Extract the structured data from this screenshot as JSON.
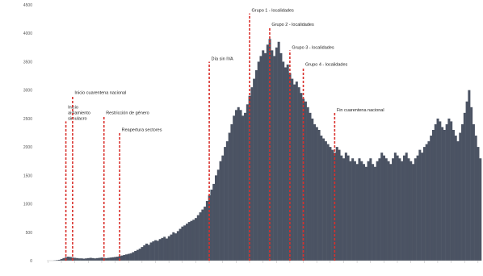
{
  "chart_data": {
    "type": "bar",
    "title": "",
    "xlabel": "",
    "ylabel": "",
    "ylim": [
      0,
      4500
    ],
    "y_ticks": [
      "0",
      "500",
      "1000",
      "1500",
      "2000",
      "2500",
      "3000",
      "3500",
      "4000",
      "4500"
    ],
    "grid": false,
    "bar_color": "#4b5363",
    "marker_color": "#d9302c",
    "series": [
      {
        "values": [
          0,
          0,
          0,
          5,
          10,
          15,
          30,
          45,
          60,
          70,
          65,
          55,
          50,
          45,
          40,
          40,
          35,
          40,
          45,
          50,
          45,
          40,
          45,
          50,
          55,
          50,
          45,
          50,
          55,
          60,
          65,
          70,
          80,
          90,
          100,
          110,
          120,
          130,
          150,
          170,
          190,
          210,
          240,
          270,
          300,
          280,
          320,
          340,
          360,
          350,
          380,
          400,
          420,
          390,
          430,
          460,
          500,
          480,
          520,
          560,
          600,
          620,
          650,
          680,
          700,
          720,
          750,
          800,
          850,
          900,
          950,
          1050,
          1150,
          1250,
          1350,
          1500,
          1600,
          1750,
          1850,
          2000,
          2100,
          2250,
          2400,
          2550,
          2650,
          2700,
          2650,
          2550,
          2600,
          2750,
          2900,
          3050,
          3200,
          3350,
          3500,
          3600,
          3700,
          3650,
          3800,
          3900,
          3700,
          3600,
          3750,
          3850,
          3650,
          3500,
          3400,
          3450,
          3300,
          3200,
          3100,
          3150,
          3050,
          2950,
          2850,
          2800,
          2700,
          2600,
          2500,
          2400,
          2350,
          2300,
          2200,
          2150,
          2100,
          2050,
          2000,
          1950,
          1900,
          2000,
          1950,
          1850,
          1800,
          1900,
          1850,
          1750,
          1800,
          1750,
          1700,
          1800,
          1750,
          1700,
          1650,
          1750,
          1800,
          1700,
          1650,
          1750,
          1800,
          1900,
          1850,
          1800,
          1750,
          1700,
          1800,
          1900,
          1850,
          1800,
          1750,
          1850,
          1900,
          1800,
          1750,
          1700,
          1800,
          1850,
          1950,
          1900,
          2000,
          2050,
          2100,
          2200,
          2300,
          2400,
          2500,
          2450,
          2350,
          2300,
          2400,
          2500,
          2450,
          2300,
          2200,
          2100,
          2250,
          2400,
          2600,
          2800,
          3000,
          2700,
          2400,
          2200,
          2000,
          1800
        ]
      }
    ],
    "annotations": [
      {
        "label_lines": [
          "Inicio",
          "aislamiento",
          "simulacro"
        ],
        "bar_index": 8,
        "height": 2450
      },
      {
        "label_lines": [
          "Inicio cuarentena nacional"
        ],
        "bar_index": 11,
        "height": 2900
      },
      {
        "label_lines": [
          "Restricción de género"
        ],
        "bar_index": 25,
        "height": 2550
      },
      {
        "label_lines": [
          "Reapertura sectores"
        ],
        "bar_index": 32,
        "height": 2250
      },
      {
        "label_lines": [
          "Día sin IVA"
        ],
        "bar_index": 72,
        "height": 3500
      },
      {
        "label_lines": [
          "Grupo 1 - localidades"
        ],
        "bar_index": 90,
        "height": 4350
      },
      {
        "label_lines": [
          "Grupo 2 - localidades"
        ],
        "bar_index": 99,
        "height": 4100
      },
      {
        "label_lines": [
          "Grupo 3 - localidades"
        ],
        "bar_index": 108,
        "height": 3700
      },
      {
        "label_lines": [
          "Grupo 4 - localidades"
        ],
        "bar_index": 114,
        "height": 3400
      },
      {
        "label_lines": [
          "Fin cuarentena nacional"
        ],
        "bar_index": 128,
        "height": 2600
      }
    ]
  }
}
